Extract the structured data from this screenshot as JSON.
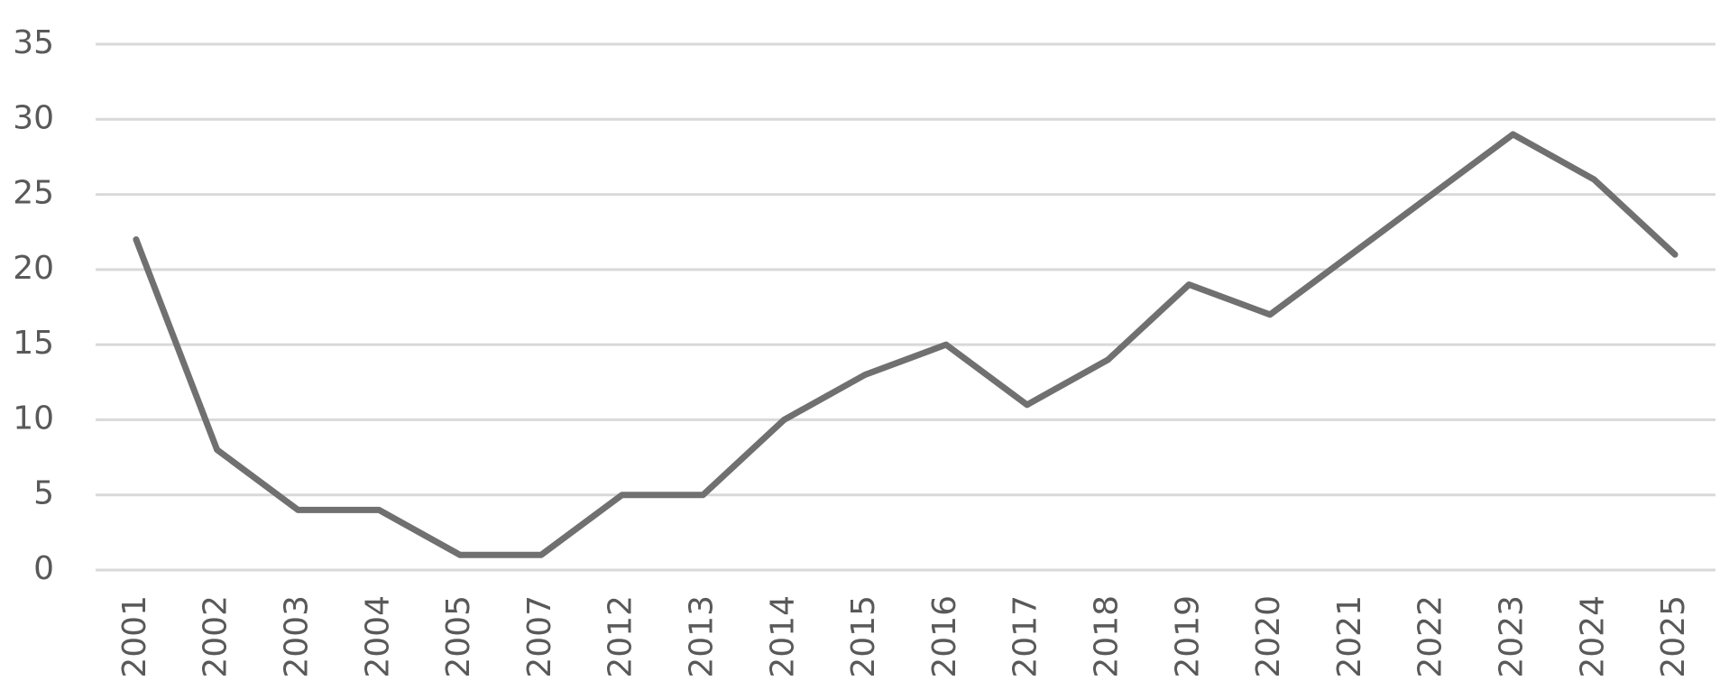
{
  "chart_data": {
    "type": "line",
    "categories": [
      "2001",
      "2002",
      "2003",
      "2004",
      "2005",
      "2007",
      "2012",
      "2013",
      "2014",
      "2015",
      "2016",
      "2017",
      "2018",
      "2019",
      "2020",
      "2021",
      "2022",
      "2023",
      "2024",
      "2025"
    ],
    "values": [
      22,
      8,
      4,
      4,
      1,
      1,
      5,
      5,
      10,
      13,
      15,
      11,
      14,
      19,
      17,
      21,
      25,
      29,
      26,
      21
    ],
    "color": "#707070",
    "ylim": [
      0,
      35
    ],
    "yticks": [
      0,
      5,
      10,
      15,
      20,
      25,
      30,
      35
    ],
    "grid": true
  }
}
